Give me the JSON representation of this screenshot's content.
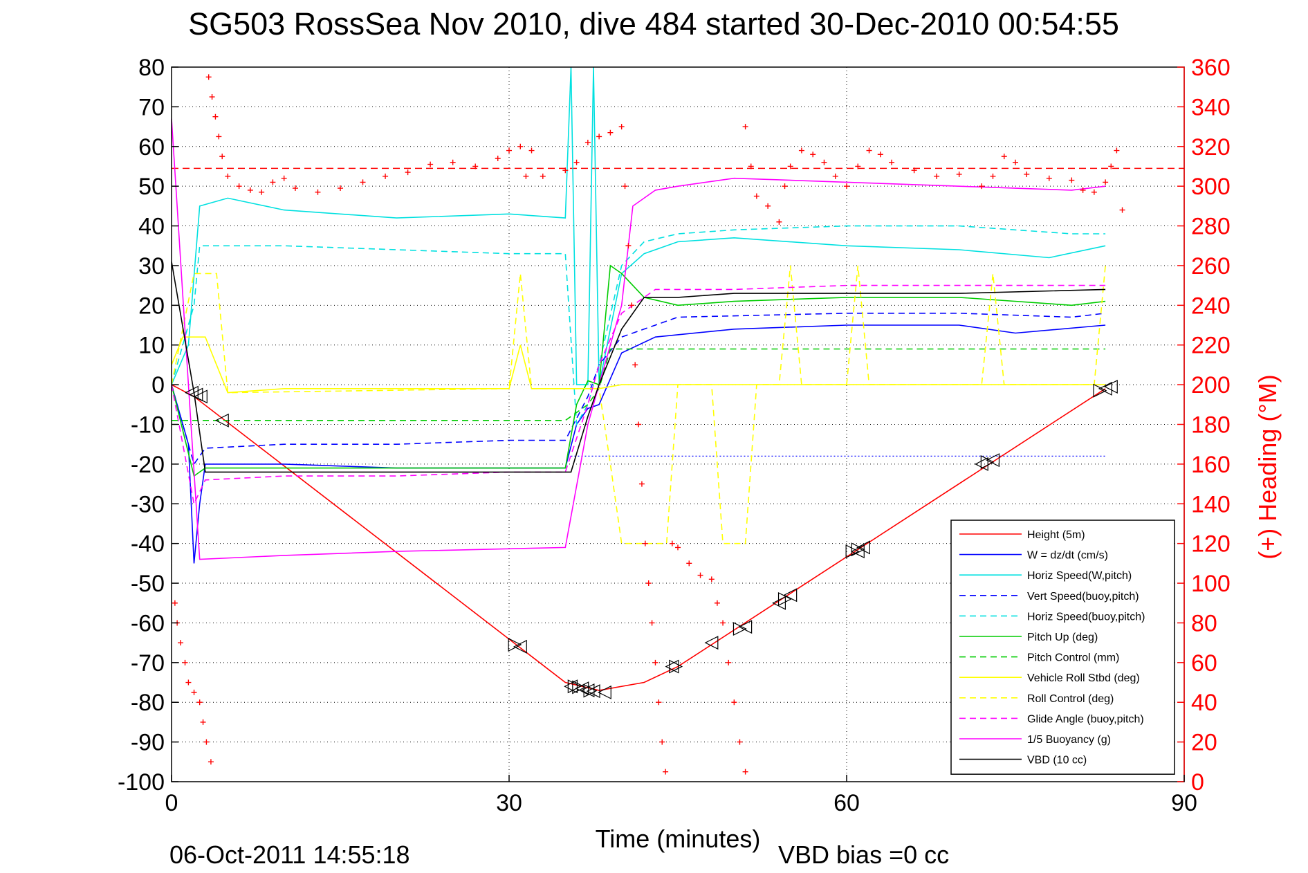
{
  "chart_data": {
    "type": "line",
    "title": "SG503 RossSea Nov 2010, dive 484 started 30-Dec-2010 00:54:55",
    "xlabel": "Time (minutes)",
    "ylabel": "",
    "y2label": "(+) Heading (°M)",
    "footer_date": "06-Oct-2011 14:55:18",
    "footer_vbd": "VBD bias =0 cc",
    "xlim": [
      0,
      90
    ],
    "ylim": [
      -100,
      80
    ],
    "y2lim": [
      0,
      360
    ],
    "xticks": [
      0,
      30,
      60,
      90
    ],
    "yticks": [
      80,
      70,
      60,
      50,
      40,
      30,
      20,
      10,
      0,
      -10,
      -20,
      -30,
      -40,
      -50,
      -60,
      -70,
      -80,
      -90,
      -100
    ],
    "y2ticks": [
      360,
      340,
      320,
      300,
      280,
      260,
      240,
      220,
      200,
      180,
      160,
      140,
      120,
      100,
      80,
      60,
      40,
      20,
      0
    ],
    "grid": true,
    "legend_position": "bottom-right",
    "heading_reference": 309,
    "series": [
      {
        "name": "Height (5m)",
        "color": "#ff0000",
        "dash": "solid",
        "points": [
          [
            0,
            0
          ],
          [
            2,
            -3
          ],
          [
            35,
            -75
          ],
          [
            38,
            -77
          ],
          [
            42,
            -75
          ],
          [
            45,
            -71
          ],
          [
            83,
            -1
          ]
        ]
      },
      {
        "name": "W = dz/dt (cm/s)",
        "color": "#0000ff",
        "dash": "solid",
        "points": [
          [
            0,
            0
          ],
          [
            1.5,
            -15
          ],
          [
            2,
            -45
          ],
          [
            2.5,
            -30
          ],
          [
            3,
            -20
          ],
          [
            10,
            -20
          ],
          [
            20,
            -21
          ],
          [
            30,
            -21
          ],
          [
            35,
            -21
          ],
          [
            36,
            -10
          ],
          [
            37,
            -6
          ],
          [
            38,
            -5
          ],
          [
            40,
            8
          ],
          [
            43,
            12
          ],
          [
            50,
            14
          ],
          [
            60,
            15
          ],
          [
            70,
            15
          ],
          [
            75,
            13
          ],
          [
            83,
            15
          ]
        ]
      },
      {
        "name": "Horiz Speed(W,pitch)",
        "color": "#00e0e0",
        "dash": "solid",
        "points": [
          [
            0,
            0
          ],
          [
            1.5,
            10
          ],
          [
            2.5,
            45
          ],
          [
            5,
            47
          ],
          [
            10,
            44
          ],
          [
            20,
            42
          ],
          [
            30,
            43
          ],
          [
            35,
            42
          ],
          [
            35.5,
            80
          ],
          [
            36,
            0
          ],
          [
            37,
            0
          ],
          [
            37.5,
            80
          ],
          [
            38,
            0
          ],
          [
            40,
            28
          ],
          [
            42,
            33
          ],
          [
            45,
            36
          ],
          [
            50,
            37
          ],
          [
            60,
            35
          ],
          [
            70,
            34
          ],
          [
            78,
            32
          ],
          [
            83,
            35
          ]
        ]
      },
      {
        "name": "Vert Speed(buoy,pitch)",
        "color": "#0000ff",
        "dash": "dashed",
        "points": [
          [
            0,
            0
          ],
          [
            2,
            -20
          ],
          [
            3,
            -16
          ],
          [
            10,
            -15
          ],
          [
            20,
            -15
          ],
          [
            30,
            -14
          ],
          [
            35,
            -14
          ],
          [
            37,
            -3
          ],
          [
            38,
            5
          ],
          [
            40,
            12
          ],
          [
            43,
            15
          ],
          [
            45,
            17
          ],
          [
            60,
            18
          ],
          [
            70,
            18
          ],
          [
            80,
            17
          ],
          [
            83,
            18
          ]
        ]
      },
      {
        "name": "Horiz Speed(buoy,pitch)",
        "color": "#00e0e0",
        "dash": "dashed",
        "points": [
          [
            0,
            0
          ],
          [
            2,
            20
          ],
          [
            2.5,
            35
          ],
          [
            10,
            35
          ],
          [
            20,
            34
          ],
          [
            30,
            33
          ],
          [
            35,
            33
          ],
          [
            36,
            -10
          ],
          [
            37,
            -5
          ],
          [
            38,
            5
          ],
          [
            40,
            30
          ],
          [
            42,
            36
          ],
          [
            45,
            38
          ],
          [
            50,
            39
          ],
          [
            60,
            40
          ],
          [
            70,
            40
          ],
          [
            80,
            38
          ],
          [
            83,
            38
          ]
        ]
      },
      {
        "name": "Pitch Up (deg)",
        "color": "#00cc00",
        "dash": "solid",
        "points": [
          [
            0,
            0
          ],
          [
            2,
            -23
          ],
          [
            3,
            -21
          ],
          [
            10,
            -21
          ],
          [
            20,
            -21
          ],
          [
            30,
            -21
          ],
          [
            35,
            -21
          ],
          [
            36,
            -5
          ],
          [
            37,
            1
          ],
          [
            38,
            0
          ],
          [
            39,
            30
          ],
          [
            40,
            28
          ],
          [
            42,
            22
          ],
          [
            45,
            20
          ],
          [
            50,
            21
          ],
          [
            60,
            22
          ],
          [
            70,
            22
          ],
          [
            80,
            20
          ],
          [
            83,
            21
          ]
        ]
      },
      {
        "name": "Pitch Control (mm)",
        "color": "#00cc00",
        "dash": "dashed",
        "points": [
          [
            0,
            -9
          ],
          [
            35,
            -9
          ],
          [
            37,
            -5
          ],
          [
            38,
            -1
          ],
          [
            39,
            9
          ],
          [
            83,
            9
          ]
        ]
      },
      {
        "name": "Vehicle Roll Stbd (deg)",
        "color": "#ffff00",
        "dash": "solid",
        "points": [
          [
            0,
            5
          ],
          [
            1,
            12
          ],
          [
            3,
            12
          ],
          [
            5,
            -2
          ],
          [
            10,
            -1
          ],
          [
            30,
            -1
          ],
          [
            31,
            10
          ],
          [
            32,
            -1
          ],
          [
            35,
            -1
          ],
          [
            38,
            -1
          ],
          [
            40,
            0
          ],
          [
            83,
            0
          ]
        ]
      },
      {
        "name": "Roll Control (deg)",
        "color": "#ffff00",
        "dash": "dashed",
        "points": [
          [
            0,
            0
          ],
          [
            2,
            28
          ],
          [
            4,
            28
          ],
          [
            5,
            -2
          ],
          [
            30,
            -1
          ],
          [
            31,
            28
          ],
          [
            32,
            -1
          ],
          [
            38,
            -1
          ],
          [
            39,
            -20
          ],
          [
            40,
            -40
          ],
          [
            44,
            -40
          ],
          [
            45,
            0
          ],
          [
            48,
            0
          ],
          [
            49,
            -40
          ],
          [
            51,
            -40
          ],
          [
            52,
            0
          ],
          [
            54,
            0
          ],
          [
            55,
            30
          ],
          [
            56,
            0
          ],
          [
            60,
            0
          ],
          [
            61,
            30
          ],
          [
            62,
            0
          ],
          [
            72,
            0
          ],
          [
            73,
            28
          ],
          [
            74,
            0
          ],
          [
            82,
            0
          ],
          [
            83,
            30
          ]
        ]
      },
      {
        "name": "Glide Angle (buoy,pitch)",
        "color": "#ff00ff",
        "dash": "dashed",
        "points": [
          [
            0,
            0
          ],
          [
            2,
            -30
          ],
          [
            3,
            -24
          ],
          [
            10,
            -23
          ],
          [
            20,
            -23
          ],
          [
            30,
            -22
          ],
          [
            35,
            -22
          ],
          [
            37,
            -5
          ],
          [
            38,
            5
          ],
          [
            40,
            18
          ],
          [
            43,
            24
          ],
          [
            50,
            24
          ],
          [
            60,
            25
          ],
          [
            70,
            25
          ],
          [
            83,
            25
          ]
        ]
      },
      {
        "name": "1/5 Buoyancy (g)",
        "color": "#ff00ff",
        "dash": "solid",
        "points": [
          [
            0,
            67
          ],
          [
            0.5,
            45
          ],
          [
            1.5,
            0
          ],
          [
            2.5,
            -44
          ],
          [
            10,
            -43
          ],
          [
            20,
            -42
          ],
          [
            35,
            -41
          ],
          [
            37,
            -10
          ],
          [
            38,
            0
          ],
          [
            40,
            20
          ],
          [
            41,
            45
          ],
          [
            43,
            49
          ],
          [
            45,
            50
          ],
          [
            50,
            52
          ],
          [
            60,
            51
          ],
          [
            70,
            50
          ],
          [
            80,
            49
          ],
          [
            83,
            50
          ]
        ]
      },
      {
        "name": "VBD (10 cc)",
        "color": "#000000",
        "dash": "solid",
        "points": [
          [
            0,
            31
          ],
          [
            2,
            -2
          ],
          [
            3,
            -22
          ],
          [
            10,
            -22
          ],
          [
            20,
            -22
          ],
          [
            30,
            -22
          ],
          [
            35.5,
            -22
          ],
          [
            37,
            -8
          ],
          [
            38,
            0
          ],
          [
            40,
            14
          ],
          [
            42,
            22
          ],
          [
            45,
            22
          ],
          [
            50,
            23
          ],
          [
            60,
            23
          ],
          [
            70,
            23
          ],
          [
            83,
            24
          ]
        ]
      }
    ],
    "heading_points": [
      [
        0.3,
        90
      ],
      [
        0.5,
        80
      ],
      [
        0.8,
        70
      ],
      [
        1.2,
        60
      ],
      [
        1.5,
        50
      ],
      [
        2,
        45
      ],
      [
        2.5,
        40
      ],
      [
        2.8,
        30
      ],
      [
        3.1,
        20
      ],
      [
        3.5,
        10
      ],
      [
        3,
        365
      ],
      [
        3.3,
        355
      ],
      [
        3.6,
        345
      ],
      [
        3.9,
        335
      ],
      [
        4.2,
        325
      ],
      [
        4.5,
        315
      ],
      [
        5,
        305
      ],
      [
        6,
        300
      ],
      [
        7,
        298
      ],
      [
        8,
        297
      ],
      [
        9,
        302
      ],
      [
        10,
        304
      ],
      [
        11,
        299
      ],
      [
        13,
        297
      ],
      [
        15,
        299
      ],
      [
        17,
        302
      ],
      [
        19,
        305
      ],
      [
        21,
        307
      ],
      [
        23,
        311
      ],
      [
        25,
        312
      ],
      [
        27,
        310
      ],
      [
        29,
        314
      ],
      [
        30,
        318
      ],
      [
        31,
        320
      ],
      [
        32,
        318
      ],
      [
        31.5,
        305
      ],
      [
        33,
        305
      ],
      [
        35,
        308
      ],
      [
        36,
        312
      ],
      [
        37,
        322
      ],
      [
        38,
        325
      ],
      [
        39,
        327
      ],
      [
        40,
        330
      ],
      [
        40.3,
        300
      ],
      [
        40.6,
        270
      ],
      [
        40.9,
        240
      ],
      [
        41.2,
        210
      ],
      [
        41.5,
        180
      ],
      [
        41.8,
        150
      ],
      [
        42.1,
        120
      ],
      [
        42.4,
        100
      ],
      [
        42.7,
        80
      ],
      [
        43,
        60
      ],
      [
        43.3,
        40
      ],
      [
        43.6,
        20
      ],
      [
        43.9,
        5
      ],
      [
        44.5,
        120
      ],
      [
        45,
        118
      ],
      [
        46,
        110
      ],
      [
        47,
        104
      ],
      [
        48,
        102
      ],
      [
        48.5,
        90
      ],
      [
        49,
        80
      ],
      [
        49.5,
        60
      ],
      [
        50,
        40
      ],
      [
        50.5,
        20
      ],
      [
        51,
        5
      ],
      [
        51,
        330
      ],
      [
        51.5,
        310
      ],
      [
        52,
        295
      ],
      [
        53,
        290
      ],
      [
        54,
        282
      ],
      [
        54.5,
        300
      ],
      [
        55,
        310
      ],
      [
        56,
        318
      ],
      [
        57,
        316
      ],
      [
        58,
        312
      ],
      [
        59,
        305
      ],
      [
        60,
        300
      ],
      [
        61,
        310
      ],
      [
        62,
        318
      ],
      [
        63,
        316
      ],
      [
        64,
        312
      ],
      [
        66,
        308
      ],
      [
        68,
        305
      ],
      [
        70,
        306
      ],
      [
        72,
        300
      ],
      [
        73,
        305
      ],
      [
        74,
        315
      ],
      [
        75,
        312
      ],
      [
        76,
        306
      ],
      [
        78,
        304
      ],
      [
        80,
        303
      ],
      [
        81,
        298
      ],
      [
        82,
        297
      ],
      [
        83,
        302
      ],
      [
        83.5,
        310
      ],
      [
        84,
        318
      ],
      [
        84.5,
        288
      ]
    ],
    "markers": [
      {
        "dir": "left",
        "points": [
          [
            1.8,
            -2
          ],
          [
            2.2,
            -2.5
          ],
          [
            2.6,
            -3
          ],
          [
            4.5,
            -9
          ],
          [
            31,
            -66
          ],
          [
            35.5,
            -76
          ],
          [
            36.5,
            -76.5
          ],
          [
            37,
            -77
          ],
          [
            37.5,
            -77.2
          ],
          [
            38.5,
            -77.5
          ],
          [
            44.5,
            -71
          ],
          [
            48,
            -65
          ],
          [
            51,
            -61
          ],
          [
            54,
            -55
          ],
          [
            55,
            -53
          ],
          [
            61,
            -42
          ],
          [
            61.5,
            -41
          ],
          [
            72,
            -20
          ],
          [
            73,
            -19
          ],
          [
            83,
            -1
          ],
          [
            83.5,
            -0.5
          ]
        ]
      },
      {
        "dir": "right",
        "points": [
          [
            30.5,
            -65.5
          ],
          [
            35.8,
            -76
          ],
          [
            36.2,
            -76.2
          ],
          [
            37.2,
            -77.1
          ],
          [
            44.8,
            -71
          ],
          [
            50.5,
            -61.5
          ],
          [
            54.5,
            -54
          ],
          [
            60.5,
            -42
          ],
          [
            61,
            -41.5
          ],
          [
            72.5,
            -19.5
          ],
          [
            82.5,
            -1.5
          ]
        ]
      }
    ],
    "blue_dotted_refs": [
      [
        35.5,
        -18
      ],
      [
        83,
        -18
      ]
    ]
  }
}
